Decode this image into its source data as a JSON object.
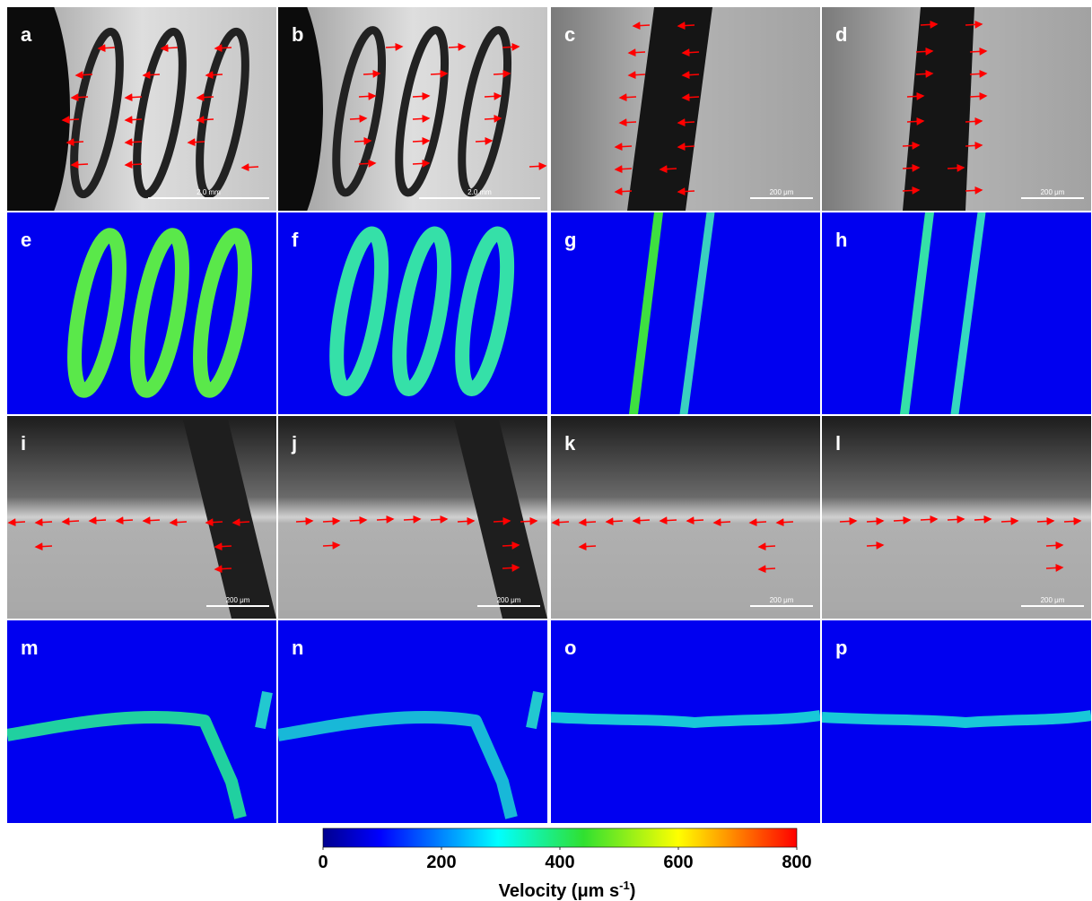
{
  "panels": [
    {
      "letter": "a",
      "scale_bar": "2.0 mm"
    },
    {
      "letter": "b",
      "scale_bar": "2.0 mm"
    },
    {
      "letter": "c",
      "scale_bar": "200 μm"
    },
    {
      "letter": "d",
      "scale_bar": "200 μm"
    },
    {
      "letter": "e"
    },
    {
      "letter": "f"
    },
    {
      "letter": "g"
    },
    {
      "letter": "h"
    },
    {
      "letter": "i",
      "scale_bar": "200 μm"
    },
    {
      "letter": "j",
      "scale_bar": "200 μm"
    },
    {
      "letter": "k",
      "scale_bar": "200 μm"
    },
    {
      "letter": "l",
      "scale_bar": "200 μm"
    },
    {
      "letter": "m"
    },
    {
      "letter": "n"
    },
    {
      "letter": "o"
    },
    {
      "letter": "p"
    }
  ],
  "colorbar": {
    "lim": [
      0,
      800
    ],
    "ticks": [
      0,
      200,
      400,
      600,
      800
    ],
    "label": {
      "text": "Velocity (μm s",
      "superscript": "-1",
      "suffix": ")"
    }
  }
}
